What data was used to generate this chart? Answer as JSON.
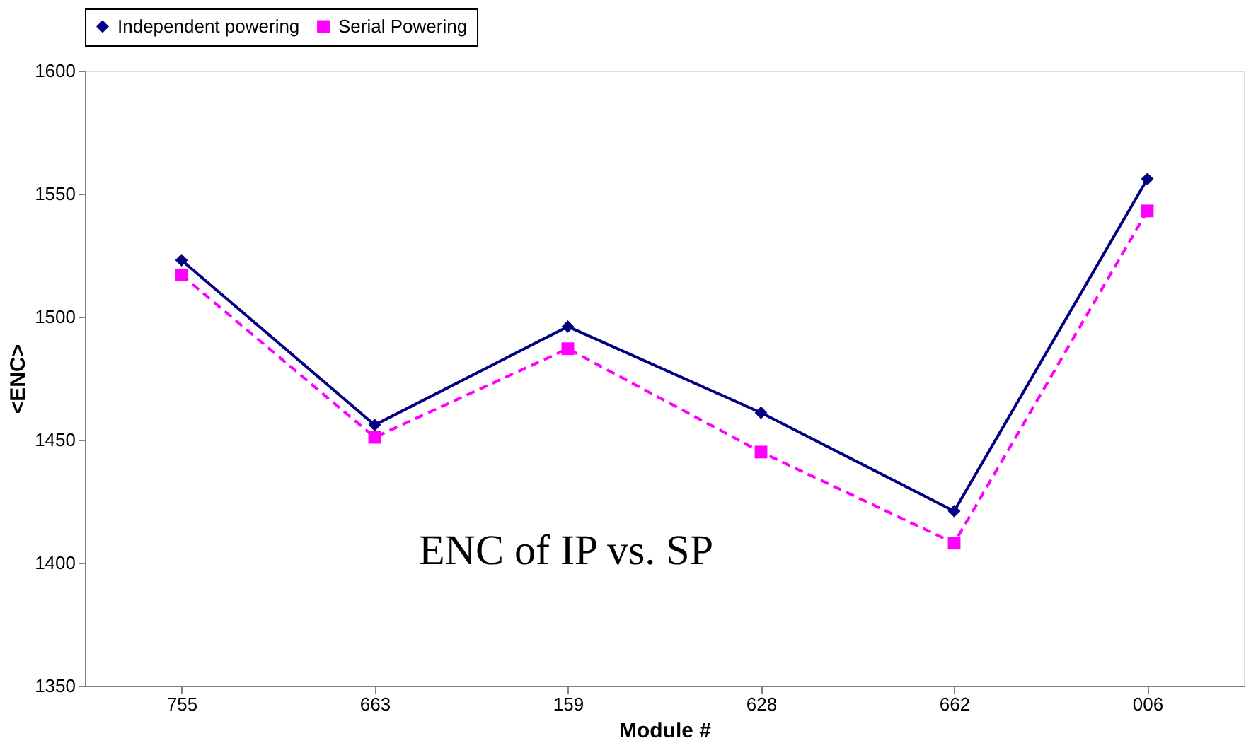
{
  "chart_data": {
    "type": "line",
    "title": "ENC of IP vs. SP",
    "xlabel": "Module #",
    "ylabel": "<ENC>",
    "categories": [
      "755",
      "663",
      "159",
      "628",
      "662",
      "006"
    ],
    "series": [
      {
        "name": "Independent powering",
        "color": "#000080",
        "marker": "diamond",
        "line_style": "solid",
        "values": [
          1523,
          1456,
          1496,
          1461,
          1421,
          1556
        ]
      },
      {
        "name": "Serial Powering",
        "color": "#ff00ff",
        "marker": "square",
        "line_style": "dashed",
        "values": [
          1517,
          1451,
          1487,
          1445,
          1408,
          1543
        ]
      }
    ],
    "ylim": [
      1350,
      1600
    ],
    "yticks": [
      1350,
      1400,
      1450,
      1500,
      1550,
      1600
    ],
    "grid": false,
    "legend": "top"
  }
}
